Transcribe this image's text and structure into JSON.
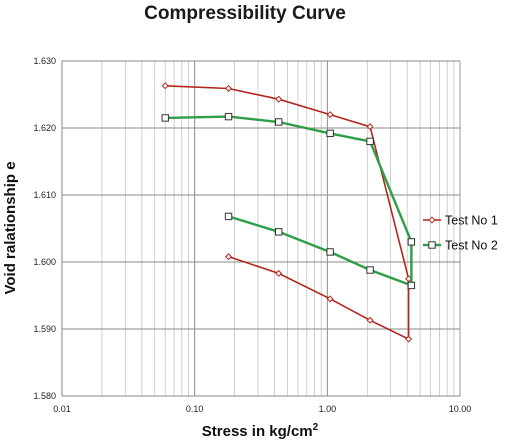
{
  "chart_data": {
    "type": "line",
    "title": "Compressibility Curve",
    "xlabel": "Stress in kg/cm",
    "xlabel_sup": "2",
    "ylabel": "Void  ralationship  e",
    "xscale": "log",
    "xlim": [
      0.01,
      10.0
    ],
    "ylim": [
      1.58,
      1.63
    ],
    "x_ticks": [
      {
        "value": 0.01,
        "label": "0.01"
      },
      {
        "value": 0.1,
        "label": "0.10"
      },
      {
        "value": 1.0,
        "label": "1.00"
      },
      {
        "value": 10.0,
        "label": "10.00"
      }
    ],
    "y_ticks": [
      {
        "value": 1.58,
        "label": "1.580"
      },
      {
        "value": 1.59,
        "label": "1.590"
      },
      {
        "value": 1.6,
        "label": "1.600"
      },
      {
        "value": 1.61,
        "label": "1.610"
      },
      {
        "value": 1.62,
        "label": "1.620"
      },
      {
        "value": 1.63,
        "label": "1.630"
      }
    ],
    "grid": true,
    "legend_position": "right",
    "series": [
      {
        "name": "Test No 1",
        "color": "#b2261c",
        "marker": "diamond",
        "x": [
          0.06,
          0.18,
          0.43,
          1.05,
          2.1,
          4.1,
          4.1,
          2.1,
          1.05,
          0.43,
          0.18
        ],
        "y": [
          1.6263,
          1.6259,
          1.6243,
          1.622,
          1.6202,
          1.5975,
          1.5885,
          1.5913,
          1.5945,
          1.5983,
          1.6008
        ]
      },
      {
        "name": "Test No 2",
        "color": "#2e9e48",
        "marker": "square",
        "x": [
          0.06,
          0.18,
          0.43,
          1.05,
          2.1,
          4.3,
          4.3,
          2.1,
          1.05,
          0.43,
          0.18
        ],
        "y": [
          1.6215,
          1.6217,
          1.6209,
          1.6192,
          1.618,
          1.603,
          1.5965,
          1.5988,
          1.6015,
          1.6045,
          1.6068
        ]
      }
    ]
  }
}
